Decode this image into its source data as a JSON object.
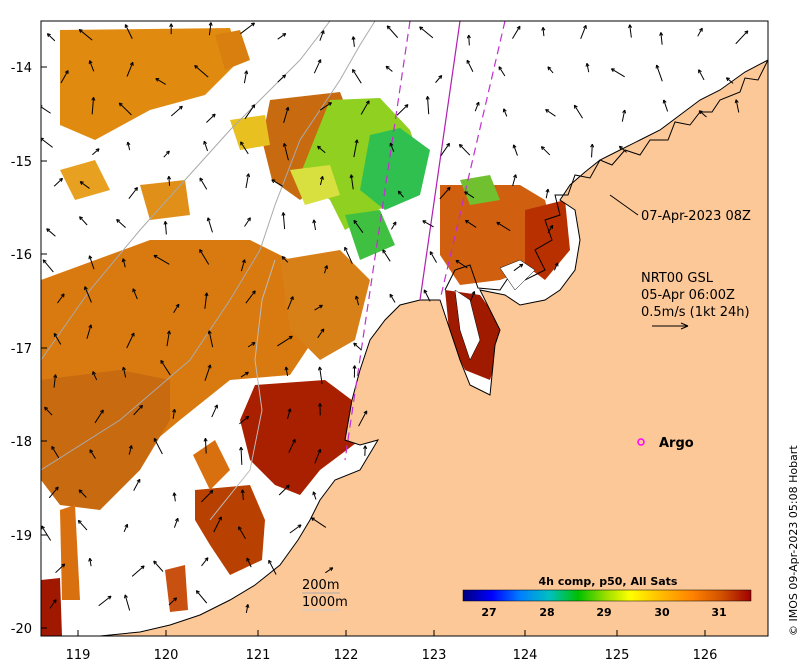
{
  "map": {
    "x_ticks": [
      "119",
      "120",
      "121",
      "122",
      "123",
      "124",
      "125",
      "126"
    ],
    "y_ticks": [
      "-14",
      "-15",
      "-16",
      "-17",
      "-18",
      "-19",
      "-20"
    ],
    "land_color": "#fcc898",
    "coast_color": "#000000"
  },
  "annotations": {
    "pass_time": "07-Apr-2023 08Z",
    "current_source": "NRT00 GSL",
    "current_time": "05-Apr 06:00Z",
    "scale_speed": "0.5m/s (1kt 24h)",
    "argo_label": "Argo",
    "isobath_200": "200m",
    "isobath_1000": "1000m"
  },
  "colorbar": {
    "title": "4h comp, p50, All Sats",
    "ticks": [
      "27",
      "28",
      "29",
      "30",
      "31"
    ],
    "colors": [
      "#00007f",
      "#0000ff",
      "#0080ff",
      "#00c0c0",
      "#00c000",
      "#a0e000",
      "#ffff00",
      "#ffc000",
      "#ff8000",
      "#d05000",
      "#a00000"
    ]
  },
  "credit": "© IMOS 09-Apr-2023 05:08 Hobart"
}
